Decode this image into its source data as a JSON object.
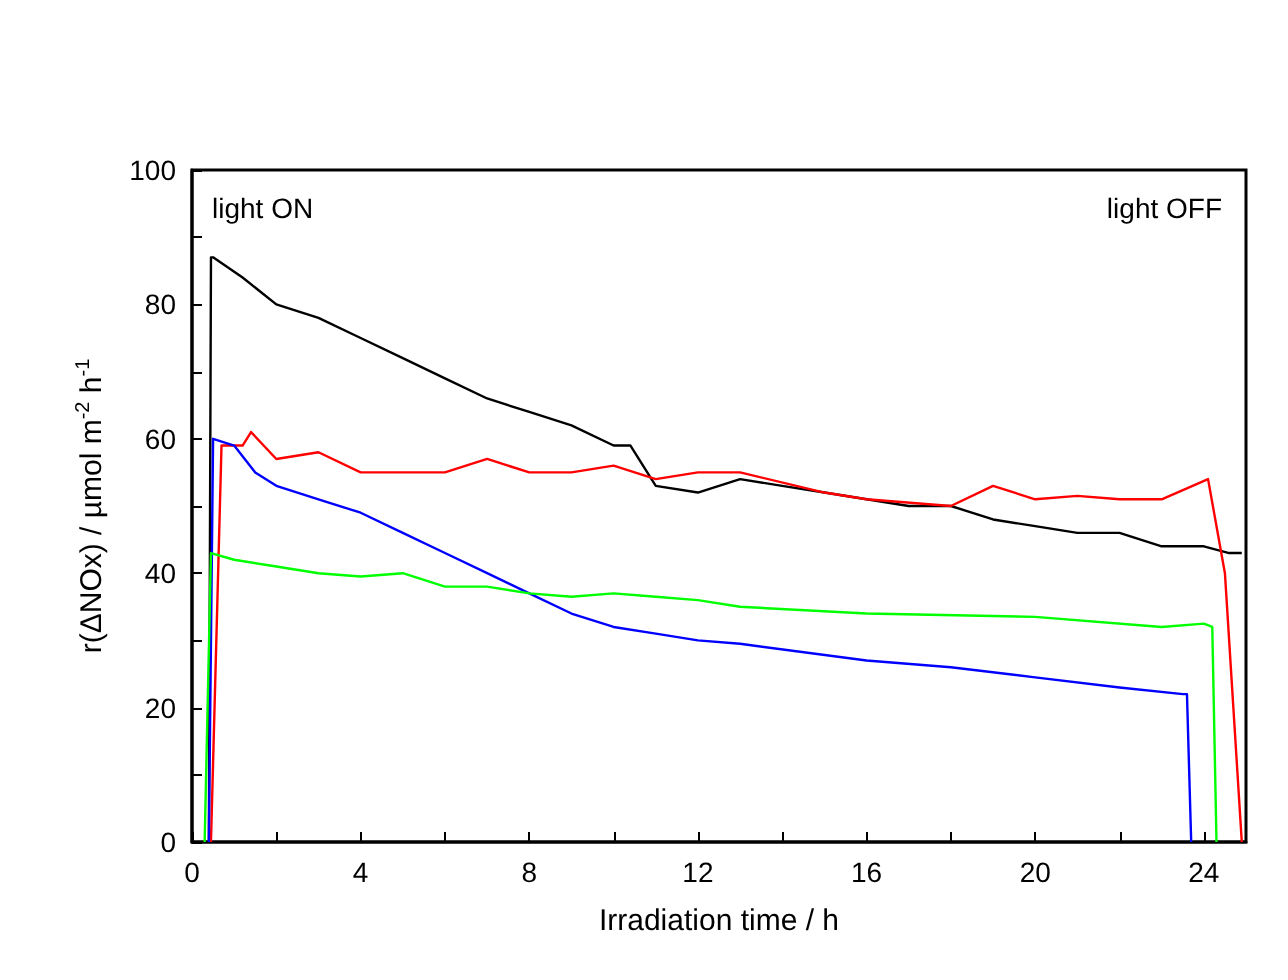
{
  "chart_data": {
    "type": "line",
    "xlabel": "Irradiation time / h",
    "ylabel": "r(ΔNOx) / µmol m$^{-2}$ h$^{-1}$",
    "annotations": [
      "light ON",
      "light OFF"
    ],
    "xlim": [
      0,
      25
    ],
    "ylim": [
      0,
      100
    ],
    "xticks": [
      0,
      {
        "value": 2,
        "label": null
      },
      4,
      {
        "value": 6,
        "label": null
      },
      8,
      {
        "value": 10,
        "label": null
      },
      12,
      {
        "value": 14,
        "label": null
      },
      16,
      {
        "value": 18,
        "label": null
      },
      20,
      {
        "value": 22,
        "label": null
      },
      24
    ],
    "yticks": [
      0,
      {
        "value": 10,
        "label": null
      },
      20,
      {
        "value": 30,
        "label": null
      },
      40,
      {
        "value": 50,
        "label": null
      },
      60,
      {
        "value": 70,
        "label": null
      },
      80,
      {
        "value": 90,
        "label": null
      },
      100
    ],
    "grid": false,
    "marker": "none",
    "line_style": "solid",
    "series": [
      {
        "color": "#000000",
        "x": [
          0.4,
          0.45,
          0.5,
          1.2,
          2,
          3,
          4,
          5,
          6,
          7,
          8,
          9,
          10,
          10.4,
          11,
          12,
          13,
          14,
          15,
          16,
          17,
          18,
          19,
          20,
          21,
          22,
          23,
          24,
          24.6,
          24.9
        ],
        "values": [
          0,
          87,
          87,
          84,
          80,
          78,
          75,
          72,
          69,
          66,
          64,
          62,
          59,
          59,
          53,
          52,
          54,
          53,
          52,
          51,
          50,
          50,
          48,
          47,
          46,
          46,
          44,
          44,
          43,
          43
        ]
      },
      {
        "color": "#ff0000",
        "x": [
          0.45,
          0.7,
          1.2,
          1.4,
          2,
          3,
          4,
          5,
          6,
          7,
          8,
          9,
          10,
          11,
          12,
          13,
          15,
          16,
          18,
          19,
          20,
          21,
          22,
          23,
          24.1,
          24.5,
          24.9
        ],
        "values": [
          0,
          59,
          59,
          61,
          57,
          58,
          55,
          55,
          55,
          57,
          55,
          55,
          56,
          54,
          55,
          55,
          52,
          51,
          50,
          53,
          51,
          51.5,
          51,
          51,
          54,
          40,
          0
        ]
      },
      {
        "color": "#0000ff",
        "x": [
          0.4,
          0.5,
          1,
          1.5,
          2,
          3,
          4,
          5,
          6,
          7,
          8,
          9,
          10,
          11,
          12,
          13,
          16,
          18,
          20,
          22,
          23.5,
          23.6,
          23.7
        ],
        "values": [
          0,
          60,
          59,
          55,
          53,
          51,
          49,
          46,
          43,
          40,
          37,
          34,
          32,
          31,
          30,
          29.5,
          27,
          26,
          24.5,
          23,
          22,
          22,
          0
        ]
      },
      {
        "color": "#00ff00",
        "x": [
          0.3,
          0.45,
          1,
          2,
          3,
          4,
          5,
          6,
          7,
          8,
          9,
          10,
          11,
          12,
          13,
          16,
          20,
          23,
          24,
          24.2,
          24.3
        ],
        "values": [
          0,
          43,
          42,
          41,
          40,
          39.5,
          40,
          38,
          38,
          37,
          36.5,
          37,
          36.5,
          36,
          35,
          34,
          33.5,
          32,
          32.5,
          32,
          0
        ]
      }
    ]
  }
}
